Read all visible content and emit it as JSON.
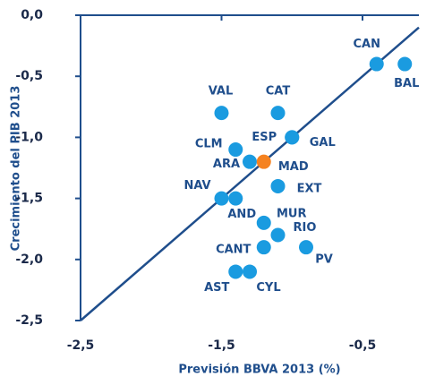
{
  "chart_data": {
    "type": "scatter",
    "x_label": "Previsión BBVA 2013 (%)",
    "y_label": "Crecimiento del PIB 2013",
    "labels": [
      "CAN",
      "BAL",
      "VAL",
      "CAT",
      "CLM",
      "ESP",
      "GAL",
      "ARA",
      "MAD",
      "EXT",
      "NAV",
      "AND",
      "MUR",
      "RIO",
      "CANT",
      "PV",
      "AST",
      "CYL"
    ],
    "x": [
      -0.4,
      -0.2,
      -1.5,
      -1.1,
      -1.4,
      -1.0,
      -1.0,
      -1.3,
      -1.2,
      -1.1,
      -1.5,
      -1.4,
      -1.2,
      -1.1,
      -1.2,
      -0.9,
      -1.4,
      -1.3
    ],
    "y": [
      -0.4,
      -0.4,
      -0.8,
      -0.8,
      -1.1,
      -1.0,
      -1.0,
      -1.2,
      -1.2,
      -1.4,
      -1.5,
      -1.5,
      -1.7,
      -1.8,
      -1.9,
      -1.9,
      -2.1,
      -2.1
    ],
    "colors": [
      "#1a9be0",
      "#1a9be0",
      "#1a9be0",
      "#1a9be0",
      "#1a9be0",
      "#1a9be0",
      "#1a9be0",
      "#1a9be0",
      "#f58220",
      "#1a9be0",
      "#1a9be0",
      "#1a9be0",
      "#1a9be0",
      "#1a9be0",
      "#1a9be0",
      "#1a9be0",
      "#1a9be0",
      "#1a9be0"
    ],
    "xlim": [
      -2.5,
      -0.1
    ],
    "ylim": [
      -2.5,
      0
    ],
    "xticks": [
      {
        "value": -2.5,
        "label": "-2,5"
      },
      {
        "value": -1.5,
        "label": "-1,5"
      },
      {
        "value": -0.5,
        "label": "-0,5"
      }
    ],
    "yticks": [
      {
        "value": 0,
        "label": "0,0"
      },
      {
        "value": -0.5,
        "label": "-0,5"
      },
      {
        "value": -1,
        "label": "-1,0"
      },
      {
        "value": -1.5,
        "label": "-1,5"
      },
      {
        "value": -2,
        "label": "-2,0"
      },
      {
        "value": -2.5,
        "label": "-2,5"
      }
    ],
    "diagonal": true,
    "axis_color": "#1f4e8c"
  }
}
